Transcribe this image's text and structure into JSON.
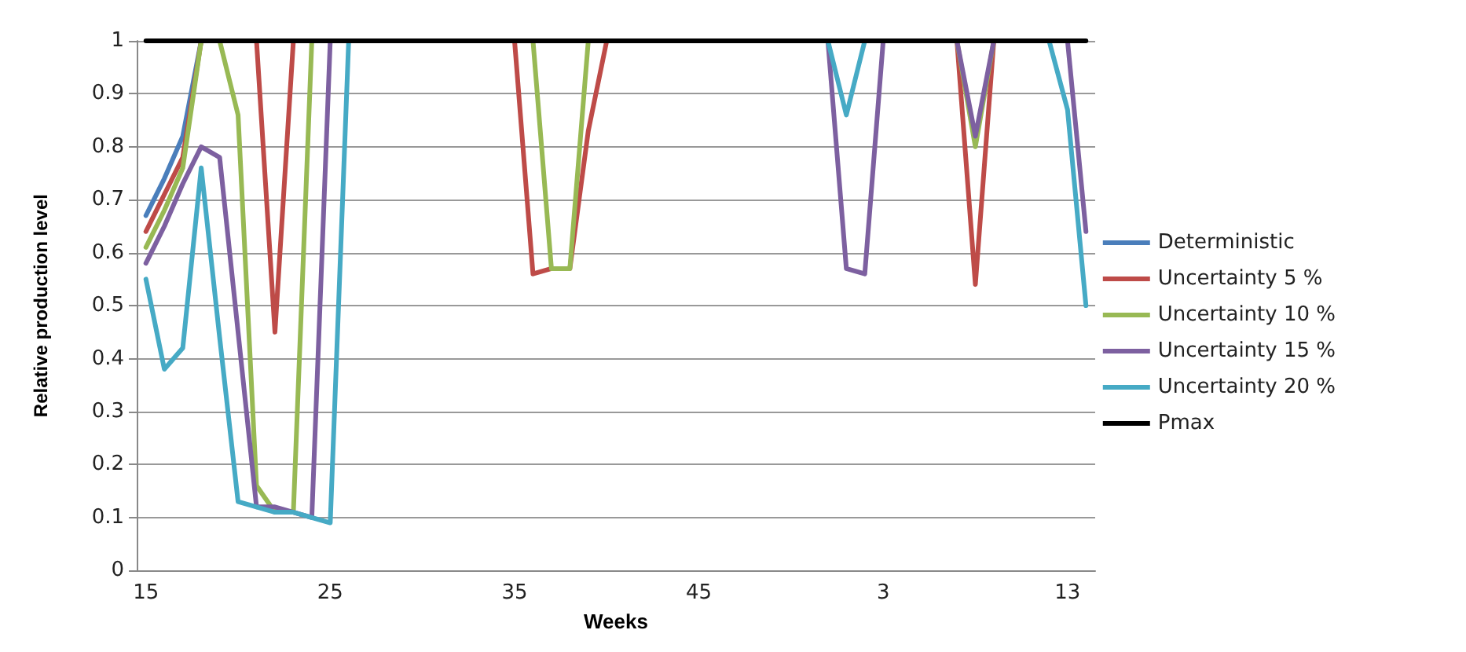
{
  "chart_data": {
    "type": "line",
    "xlabel": "Weeks",
    "ylabel": "Relative production level",
    "categories": [
      "15",
      null,
      null,
      null,
      null,
      null,
      null,
      null,
      null,
      null,
      "25",
      null,
      null,
      null,
      null,
      null,
      null,
      null,
      null,
      null,
      "35",
      null,
      null,
      null,
      null,
      null,
      null,
      null,
      null,
      null,
      "45",
      null,
      null,
      null,
      null,
      null,
      null,
      null,
      null,
      null,
      "3",
      null,
      null,
      null,
      null,
      null,
      null,
      null,
      null,
      null,
      "13",
      null
    ],
    "series": [
      {
        "name": "Deterministic",
        "color": "#4a7ebb",
        "values": [
          0.67,
          0.74,
          0.82,
          1,
          null,
          null,
          null,
          null,
          null,
          null,
          null,
          null,
          null,
          null,
          null,
          null,
          null,
          null,
          null,
          null,
          null,
          null,
          null,
          null,
          null,
          null,
          null,
          null,
          null,
          null,
          null,
          null,
          null,
          null,
          null,
          null,
          null,
          null,
          null,
          null,
          null,
          null,
          null,
          null,
          null,
          null,
          null,
          null,
          null,
          null,
          null,
          null
        ]
      },
      {
        "name": "Uncertainty 5 %",
        "color": "#be4b48",
        "values": [
          0.64,
          0.71,
          0.78,
          1,
          null,
          null,
          1,
          0.45,
          1,
          null,
          null,
          null,
          null,
          null,
          null,
          null,
          null,
          null,
          null,
          null,
          1,
          0.56,
          0.57,
          0.57,
          0.83,
          1,
          null,
          null,
          null,
          null,
          null,
          null,
          null,
          null,
          null,
          null,
          null,
          null,
          null,
          null,
          null,
          null,
          null,
          null,
          1,
          0.54,
          1,
          null,
          null,
          null,
          null,
          null
        ]
      },
      {
        "name": "Uncertainty 10 %",
        "color": "#98b954",
        "values": [
          0.61,
          0.68,
          0.76,
          1,
          1,
          0.86,
          0.16,
          0.11,
          0.11,
          1,
          null,
          null,
          null,
          null,
          null,
          null,
          null,
          null,
          null,
          null,
          null,
          1,
          0.57,
          0.57,
          1,
          null,
          null,
          null,
          null,
          null,
          null,
          null,
          null,
          null,
          null,
          null,
          null,
          null,
          null,
          null,
          null,
          null,
          null,
          null,
          1,
          0.8,
          1,
          null,
          null,
          null,
          null,
          null
        ]
      },
      {
        "name": "Uncertainty 15 %",
        "color": "#7d60a0",
        "values": [
          0.58,
          0.65,
          0.73,
          0.8,
          0.78,
          0.45,
          0.12,
          0.12,
          0.11,
          0.1,
          1,
          null,
          null,
          null,
          null,
          null,
          null,
          null,
          null,
          null,
          null,
          null,
          null,
          null,
          null,
          null,
          null,
          null,
          null,
          null,
          null,
          null,
          null,
          null,
          null,
          null,
          null,
          1,
          0.57,
          0.56,
          1,
          null,
          null,
          null,
          1,
          0.82,
          1,
          null,
          null,
          null,
          1,
          0.64
        ]
      },
      {
        "name": "Uncertainty 20 %",
        "color": "#46aac5",
        "values": [
          0.55,
          0.38,
          0.42,
          0.76,
          0.44,
          0.13,
          0.12,
          0.11,
          0.11,
          0.1,
          0.09,
          1,
          null,
          null,
          null,
          null,
          null,
          null,
          null,
          null,
          null,
          null,
          null,
          null,
          null,
          null,
          null,
          null,
          null,
          null,
          null,
          null,
          null,
          null,
          null,
          null,
          null,
          1,
          0.86,
          1,
          null,
          null,
          null,
          null,
          null,
          null,
          null,
          null,
          null,
          1,
          0.87,
          0.5
        ]
      },
      {
        "name": "Pmax",
        "color": "#000000",
        "values": [
          1,
          1,
          1,
          1,
          1,
          1,
          1,
          1,
          1,
          1,
          1,
          1,
          1,
          1,
          1,
          1,
          1,
          1,
          1,
          1,
          1,
          1,
          1,
          1,
          1,
          1,
          1,
          1,
          1,
          1,
          1,
          1,
          1,
          1,
          1,
          1,
          1,
          1,
          1,
          1,
          1,
          1,
          1,
          1,
          1,
          1,
          1,
          1,
          1,
          1,
          1,
          1
        ]
      }
    ],
    "ylim": [
      0,
      1
    ],
    "yticks": [
      0,
      0.1,
      0.2,
      0.3,
      0.4,
      0.5,
      0.6,
      0.7,
      0.8,
      0.9,
      1
    ],
    "grid": "y",
    "legend": "right",
    "marker": "none",
    "line_style": "solid"
  }
}
